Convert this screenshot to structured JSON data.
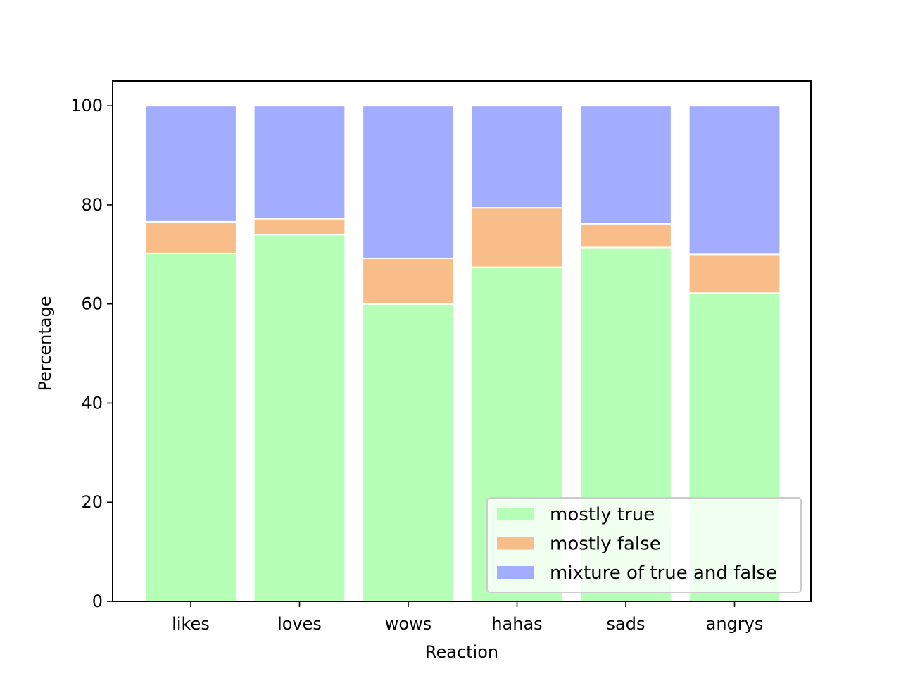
{
  "chart_data": {
    "type": "bar",
    "stacked": true,
    "title": "",
    "xlabel": "Reaction",
    "ylabel": "Percentage",
    "ylim": [
      0,
      105
    ],
    "yticks": [
      0,
      20,
      40,
      60,
      80,
      100
    ],
    "categories": [
      "likes",
      "loves",
      "wows",
      "hahas",
      "sads",
      "angrys"
    ],
    "series": [
      {
        "name": "mostly true",
        "color": "#b6ffb6",
        "values": [
          70.2,
          74.0,
          60.0,
          67.4,
          71.4,
          62.2
        ]
      },
      {
        "name": "mostly false",
        "color": "#f8bd88",
        "values": [
          6.4,
          3.2,
          9.2,
          12.0,
          4.8,
          7.8
        ]
      },
      {
        "name": "mixture of true and false",
        "color": "#a3adff",
        "values": [
          23.4,
          22.8,
          30.8,
          20.6,
          23.8,
          30.0
        ]
      }
    ],
    "legend": {
      "placement": "lower-right"
    },
    "grid": false
  }
}
